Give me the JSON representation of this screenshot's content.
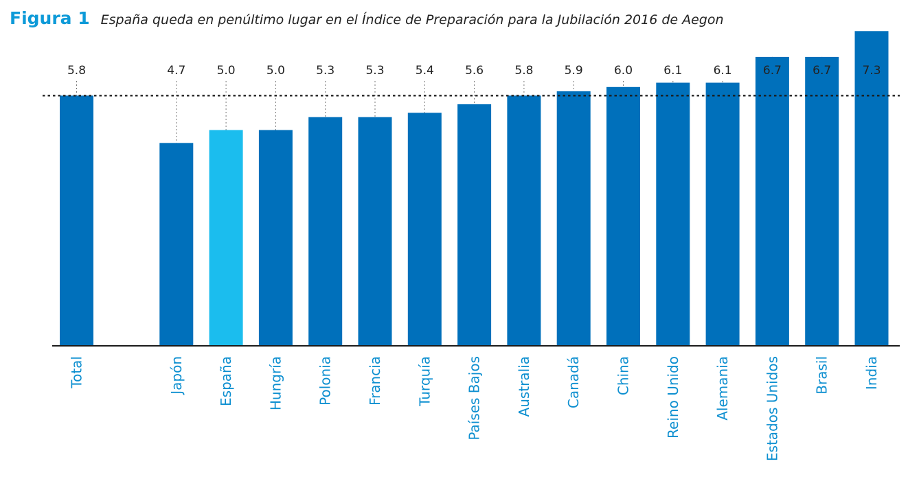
{
  "header": {
    "figure_label": "Figura 1",
    "title": "España queda en penúltimo lugar en el Índice de Preparación para la Jubilación 2016 de Aegon"
  },
  "colors": {
    "bar": "#0070bb",
    "highlight": "#1bbdee",
    "category_text": "#0d8fd0",
    "figure_label": "#0d9ad8",
    "reference_line": "#1a1a1a"
  },
  "chart_data": {
    "type": "bar",
    "title": "España queda en penúltimo lugar en el Índice de Preparación para la Jubilación 2016 de Aegon",
    "xlabel": "",
    "ylabel": "",
    "categories": [
      "Total",
      "Japón",
      "España",
      "Hungría",
      "Polonia",
      "Francia",
      "Turquía",
      "Países Bajos",
      "Australia",
      "Canadá",
      "China",
      "Reino Unido",
      "Alemania",
      "Estados Unidos",
      "Brasil",
      "India"
    ],
    "values": [
      5.8,
      4.7,
      5.0,
      5.0,
      5.3,
      5.3,
      5.4,
      5.6,
      5.8,
      5.9,
      6.0,
      6.1,
      6.1,
      6.7,
      6.7,
      7.3
    ],
    "value_labels": [
      "5.8",
      "4.7",
      "5.0",
      "5.0",
      "5.3",
      "5.3",
      "5.4",
      "5.6",
      "5.8",
      "5.9",
      "6.0",
      "6.1",
      "6.1",
      "6.7",
      "6.7",
      "7.3"
    ],
    "highlight_category": "España",
    "reference_line": 5.8,
    "grid": false,
    "legend": "none"
  }
}
